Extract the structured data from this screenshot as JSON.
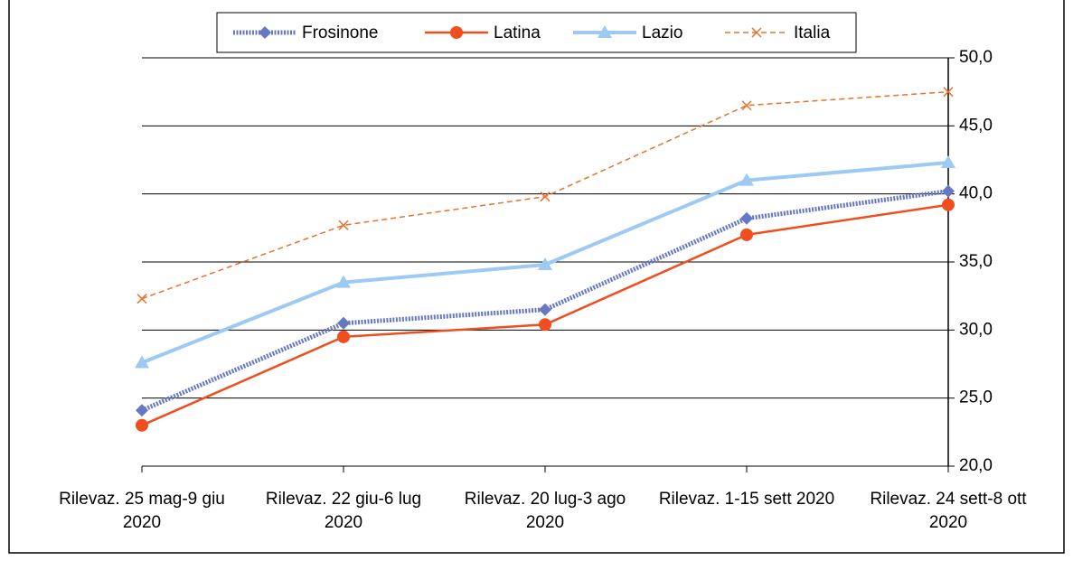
{
  "chart_data": {
    "type": "line",
    "categories": [
      "Rilevaz. 25 mag-9 giu 2020",
      "Rilevaz. 22 giu-6 lug 2020",
      "Rilevaz. 20 lug-3 ago 2020",
      "Rilevaz. 1-15 sett 2020",
      "Rilevaz. 24 sett-8 ott 2020"
    ],
    "series": [
      {
        "name": "Frosinone",
        "color": "#6677c4",
        "values": [
          24.1,
          30.5,
          31.5,
          38.2,
          40.2
        ]
      },
      {
        "name": "Latina",
        "color": "#f04e1e",
        "values": [
          23.0,
          29.5,
          30.4,
          37.0,
          39.2
        ]
      },
      {
        "name": "Lazio",
        "color": "#9ccaf2",
        "values": [
          27.6,
          33.5,
          34.8,
          41.0,
          42.3
        ]
      },
      {
        "name": "Italia",
        "color": "#e8732c",
        "values": [
          32.3,
          37.7,
          39.8,
          46.5,
          47.5
        ]
      }
    ],
    "ylim": [
      20,
      50
    ],
    "yticks": [
      {
        "value": 20,
        "label": "20,0"
      },
      {
        "value": 25,
        "label": "25,0"
      },
      {
        "value": 30,
        "label": "30,0"
      },
      {
        "value": 35,
        "label": "35,0"
      },
      {
        "value": 40,
        "label": "40,0"
      },
      {
        "value": 45,
        "label": "45,0"
      },
      {
        "value": 50,
        "label": "50,0"
      }
    ],
    "grid": true,
    "legend": "top"
  }
}
